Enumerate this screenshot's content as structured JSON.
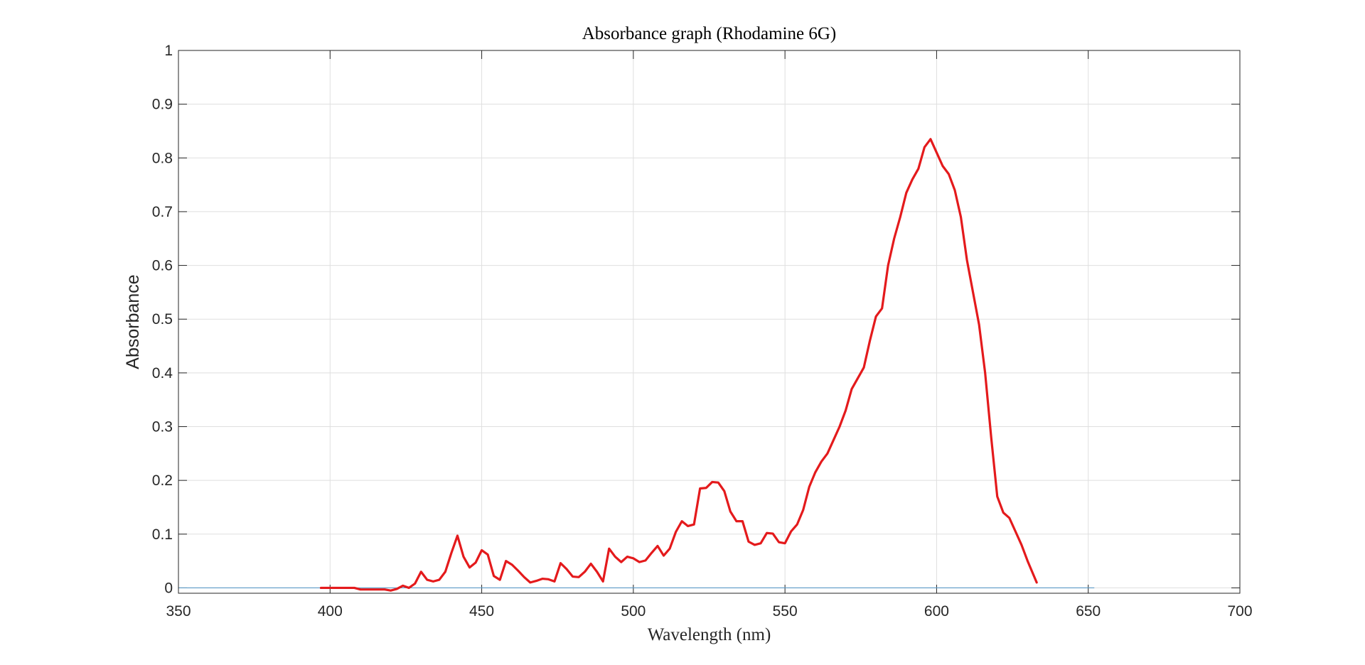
{
  "chart_data": {
    "type": "line",
    "title": "Absorbance graph (Rhodamine 6G)",
    "xlabel": "Wavelength (nm)",
    "ylabel": "Absorbance",
    "xlim": [
      350,
      700
    ],
    "ylim": [
      -0.01,
      1
    ],
    "xticks": [
      350,
      400,
      450,
      500,
      550,
      600,
      650,
      700
    ],
    "yticks": [
      0,
      0.1,
      0.2,
      0.3,
      0.4,
      0.5,
      0.6,
      0.7,
      0.8,
      0.9,
      1
    ],
    "xtick_labels": [
      "350",
      "400",
      "450",
      "500",
      "550",
      "600",
      "650",
      "700"
    ],
    "ytick_labels": [
      "0",
      "0.1",
      "0.2",
      "0.3",
      "0.4",
      "0.5",
      "0.6",
      "0.7",
      "0.8",
      "0.9",
      "1"
    ],
    "grid": true,
    "series": [
      {
        "color": "#e41a1c",
        "x": [
          397,
          400,
          403,
          405,
          408,
          410,
          413,
          415,
          418,
          420,
          422,
          424,
          426,
          428,
          430,
          432,
          434,
          436,
          438,
          440,
          442,
          444,
          446,
          448,
          450,
          452,
          454,
          456,
          458,
          460,
          462,
          464,
          466,
          468,
          470,
          472,
          474,
          476,
          478,
          480,
          482,
          484,
          486,
          488,
          490,
          492,
          494,
          496,
          498,
          500,
          502,
          504,
          506,
          508,
          510,
          512,
          514,
          516,
          518,
          520,
          522,
          524,
          526,
          528,
          530,
          532,
          534,
          536,
          538,
          540,
          542,
          544,
          546,
          548,
          550,
          552,
          554,
          556,
          558,
          560,
          562,
          564,
          566,
          568,
          570,
          572,
          574,
          576,
          578,
          580,
          582,
          584,
          586,
          588,
          590,
          592,
          594,
          596,
          598,
          600,
          602,
          604,
          606,
          608,
          610,
          612,
          614,
          616,
          618,
          620,
          622,
          624,
          626,
          628,
          630,
          633
        ],
        "y": [
          0,
          0,
          0,
          0,
          0,
          -0.003,
          -0.003,
          -0.003,
          -0.003,
          -0.005,
          -0.002,
          0.004,
          0.0,
          0.008,
          0.03,
          0.015,
          0.012,
          0.015,
          0.03,
          0.065,
          0.097,
          0.058,
          0.038,
          0.047,
          0.07,
          0.062,
          0.022,
          0.015,
          0.05,
          0.043,
          0.032,
          0.02,
          0.01,
          0.013,
          0.017,
          0.016,
          0.012,
          0.046,
          0.035,
          0.021,
          0.02,
          0.03,
          0.045,
          0.03,
          0.012,
          0.073,
          0.058,
          0.048,
          0.058,
          0.055,
          0.048,
          0.051,
          0.065,
          0.078,
          0.06,
          0.073,
          0.104,
          0.124,
          0.115,
          0.118,
          0.185,
          0.186,
          0.197,
          0.196,
          0.18,
          0.142,
          0.124,
          0.124,
          0.086,
          0.08,
          0.083,
          0.102,
          0.101,
          0.085,
          0.083,
          0.105,
          0.118,
          0.145,
          0.188,
          0.215,
          0.235,
          0.25,
          0.275,
          0.3,
          0.33,
          0.37,
          0.39,
          0.41,
          0.46,
          0.505,
          0.52,
          0.6,
          0.65,
          0.69,
          0.735,
          0.76,
          0.78,
          0.82,
          0.835,
          0.81,
          0.785,
          0.77,
          0.74,
          0.69,
          0.61,
          0.55,
          0.49,
          0.4,
          0.28,
          0.17,
          0.14,
          0.13,
          0.105,
          0.08,
          0.05,
          0.01
        ]
      }
    ],
    "baseline": {
      "value": 0,
      "x_range": [
        350,
        652
      ],
      "color": "#5b9bc8"
    }
  }
}
